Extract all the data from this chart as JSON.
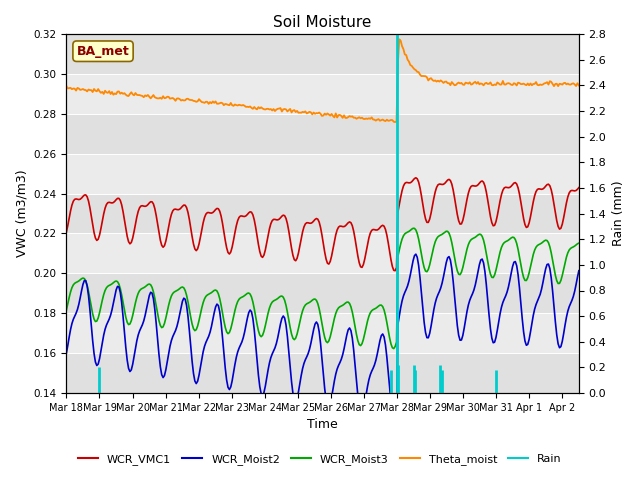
{
  "title": "Soil Moisture",
  "ylabel_left": "VWC (m3/m3)",
  "ylabel_right": "Rain (mm)",
  "xlabel": "Time",
  "ylim_left": [
    0.14,
    0.32
  ],
  "ylim_right": [
    0.0,
    2.8
  ],
  "background_color": "#ffffff",
  "plot_bg_color": "#ebebeb",
  "band_color": "#d8d8d8",
  "station_label": "BA_met",
  "legend": [
    "WCR_VMC1",
    "WCR_Moist2",
    "WCR_Moist3",
    "Theta_moist",
    "Rain"
  ],
  "legend_colors": [
    "#cc0000",
    "#0000cc",
    "#00aa00",
    "#ff8800",
    "#00cccc"
  ],
  "tick_labels": [
    "Mar 18",
    "Mar 19",
    "Mar 20",
    "Mar 21",
    "Mar 22",
    "Mar 23",
    "Mar 24",
    "Mar 25",
    "Mar 26",
    "Mar 27",
    "Mar 28",
    "Mar 29",
    "Mar 30",
    "Mar 31",
    "Apr 1",
    "Apr 2"
  ],
  "yticks_left": [
    0.14,
    0.16,
    0.18,
    0.2,
    0.22,
    0.24,
    0.26,
    0.28,
    0.3,
    0.32
  ],
  "yticks_right": [
    0.0,
    0.2,
    0.4,
    0.6,
    0.8,
    1.0,
    1.2,
    1.4,
    1.6,
    1.8,
    2.0,
    2.2,
    2.4,
    2.6,
    2.8
  ],
  "rain_events_day": [
    1.0,
    9.83,
    10.0,
    10.02,
    10.5,
    10.55,
    11.3,
    11.35,
    13.0
  ],
  "rain_values": [
    0.2,
    0.18,
    2.8,
    0.22,
    0.22,
    0.18,
    0.22,
    0.18,
    0.18
  ]
}
